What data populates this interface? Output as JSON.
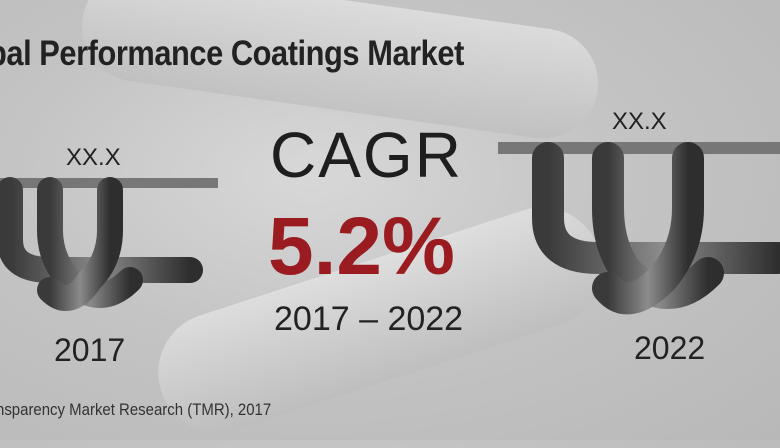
{
  "title": "bal Performance Coatings Market",
  "cagr_label": "CAGR",
  "cagr_value": "5.2%",
  "period": "2017 – 2022",
  "left": {
    "value": "XX.X",
    "year": "2017"
  },
  "right": {
    "value": "XX.X",
    "year": "2022"
  },
  "source": "nsparency Market Research (TMR), 2017",
  "colors": {
    "accent": "#9b1c20",
    "text": "#222222"
  }
}
